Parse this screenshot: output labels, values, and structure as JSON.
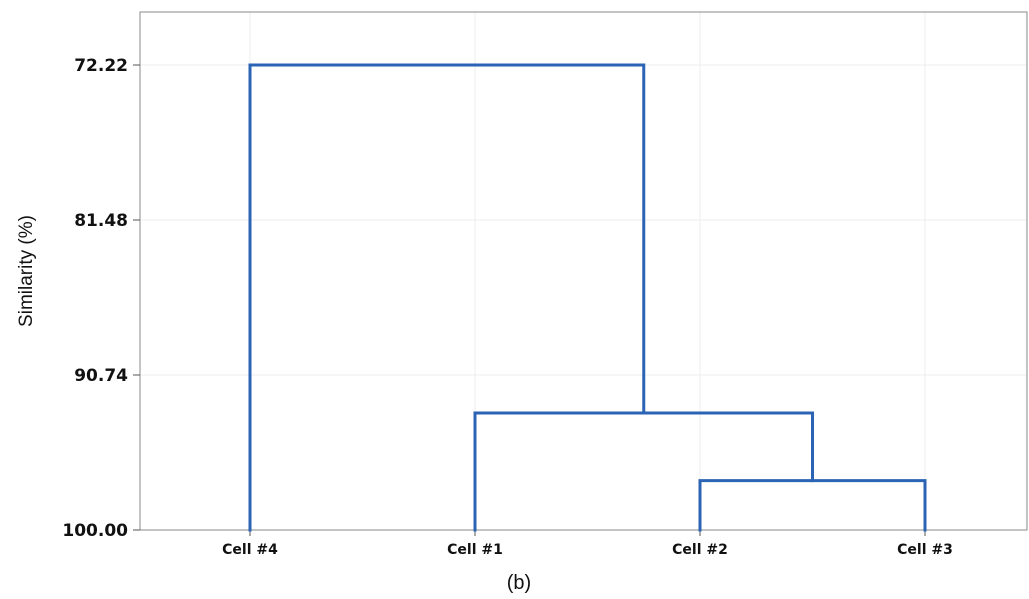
{
  "chart_data": {
    "type": "dendrogram",
    "title": "",
    "xlabel": "",
    "ylabel": "Similarity (%)",
    "caption": "(b)",
    "leaves": [
      "Cell #4",
      "Cell #1",
      "Cell #2",
      "Cell #3"
    ],
    "merges": [
      {
        "left": "Cell #2",
        "right": "Cell #3",
        "similarity": 97.05
      },
      {
        "left": "Cell #1",
        "right": "Cell #2 + Cell #3",
        "similarity": 93.01
      },
      {
        "left": "Cell #4",
        "right": "Cell #1 + Cell #2 + Cell #3",
        "similarity": 72.22
      }
    ],
    "yticks": [
      "72.22",
      "81.48",
      "90.74",
      "100.00"
    ],
    "ylim": [
      72.22,
      100.0
    ],
    "y_inverted": true,
    "grid": true,
    "line_color": "#2b63b5"
  }
}
